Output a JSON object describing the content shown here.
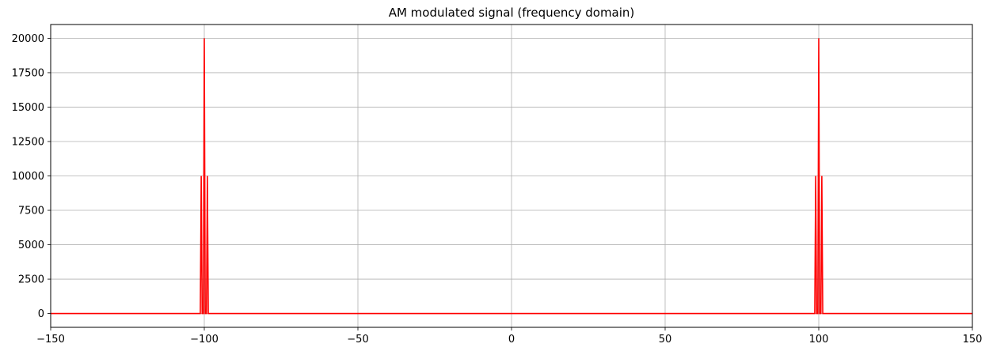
{
  "chart_data": {
    "type": "line",
    "title": "AM modulated signal (frequency domain)",
    "xlabel": "",
    "ylabel": "",
    "xlim": [
      -150,
      150
    ],
    "ylim": [
      -1000,
      21000
    ],
    "grid": true,
    "xticks": [
      -150,
      -100,
      -50,
      0,
      50,
      100,
      150
    ],
    "xtick_labels": [
      "−150",
      "−100",
      "−50",
      "0",
      "50",
      "100",
      "150"
    ],
    "yticks": [
      0,
      2500,
      5000,
      7500,
      10000,
      12500,
      15000,
      17500,
      20000
    ],
    "ytick_labels": [
      "0",
      "2500",
      "5000",
      "7500",
      "10000",
      "12500",
      "15000",
      "17500",
      "20000"
    ],
    "series": [
      {
        "color": "#ff0000",
        "x": [
          -150,
          -101.3,
          -101,
          -100.7,
          -100.3,
          -100,
          -99.7,
          -99.3,
          -99,
          -98.7,
          98.7,
          99,
          99.3,
          99.7,
          100,
          100.3,
          100.7,
          101,
          101.3,
          150
        ],
        "y": [
          0,
          0,
          10000,
          0,
          0,
          20000,
          0,
          0,
          10000,
          0,
          0,
          10000,
          0,
          0,
          20000,
          0,
          0,
          10000,
          0,
          0
        ]
      }
    ]
  }
}
